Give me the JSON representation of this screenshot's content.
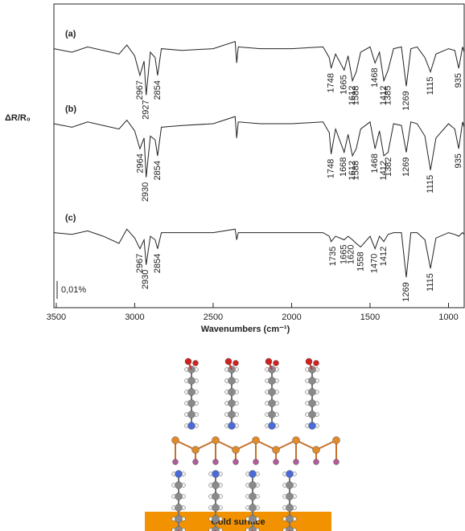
{
  "chart_data": {
    "type": "line",
    "y_label": "ΔR/R₀",
    "x_label": "Wavenumbers (cm⁻¹)",
    "xlim": [
      3515,
      900
    ],
    "xticks": [
      3500,
      3000,
      2500,
      2000,
      1500,
      1000
    ],
    "ylim": [
      0,
      0.17
    ],
    "x": [
      3515,
      3400,
      3300,
      3200,
      3100,
      3050,
      3000,
      2967,
      2940,
      2927,
      2900,
      2870,
      2854,
      2830,
      2700,
      2500,
      2360,
      2350,
      2340,
      2200,
      2000,
      1800,
      1760,
      1748,
      1720,
      1665,
      1640,
      1612,
      1588,
      1560,
      1500,
      1468,
      1440,
      1412,
      1385,
      1350,
      1300,
      1269,
      1240,
      1200,
      1150,
      1115,
      1080,
      1000,
      960,
      935,
      910,
      900
    ],
    "series": [
      {
        "name": "(a)",
        "color": "#222222",
        "values": [
          0.145,
          0.143,
          0.146,
          0.144,
          0.142,
          0.147,
          0.141,
          0.13,
          0.138,
          0.119,
          0.143,
          0.14,
          0.13,
          0.145,
          0.144,
          0.145,
          0.149,
          0.137,
          0.146,
          0.145,
          0.145,
          0.146,
          0.14,
          0.134,
          0.142,
          0.133,
          0.141,
          0.127,
          0.132,
          0.143,
          0.146,
          0.137,
          0.143,
          0.127,
          0.133,
          0.145,
          0.146,
          0.124,
          0.145,
          0.146,
          0.14,
          0.132,
          0.142,
          0.145,
          0.144,
          0.134,
          0.146,
          0.143
        ],
        "peaks": [
          2967,
          2927,
          2854,
          1748,
          1665,
          1612,
          1588,
          1468,
          1412,
          1385,
          1269,
          1115,
          935
        ]
      },
      {
        "name": "(b)",
        "color": "#222222",
        "values": [
          0.103,
          0.101,
          0.104,
          0.102,
          0.1,
          0.105,
          0.099,
          0.089,
          0.095,
          0.073,
          0.096,
          0.094,
          0.085,
          0.101,
          0.102,
          0.103,
          0.107,
          0.095,
          0.104,
          0.103,
          0.103,
          0.104,
          0.098,
          0.086,
          0.1,
          0.087,
          0.097,
          0.085,
          0.089,
          0.1,
          0.104,
          0.089,
          0.099,
          0.085,
          0.087,
          0.103,
          0.102,
          0.087,
          0.104,
          0.103,
          0.096,
          0.077,
          0.095,
          0.103,
          0.1,
          0.089,
          0.104,
          0.101
        ],
        "peaks": [
          2964,
          2930,
          2854,
          1748,
          1668,
          1612,
          1588,
          1468,
          1412,
          1382,
          1269,
          1115,
          935
        ]
      },
      {
        "name": "(c)",
        "color": "#222222",
        "values": [
          0.042,
          0.041,
          0.043,
          0.04,
          0.036,
          0.044,
          0.039,
          0.033,
          0.038,
          0.024,
          0.04,
          0.038,
          0.033,
          0.042,
          0.042,
          0.042,
          0.044,
          0.038,
          0.042,
          0.042,
          0.042,
          0.042,
          0.04,
          0.037,
          0.04,
          0.038,
          0.04,
          0.038,
          0.036,
          0.034,
          0.04,
          0.033,
          0.04,
          0.037,
          0.041,
          0.042,
          0.042,
          0.017,
          0.042,
          0.042,
          0.038,
          0.022,
          0.039,
          0.042,
          0.041,
          0.04,
          0.042,
          0.041
        ],
        "peaks": [
          2967,
          2930,
          2854,
          1735,
          1665,
          1620,
          1558,
          1470,
          1412,
          1269,
          1115
        ]
      }
    ],
    "scale_bar": {
      "value": 0.01,
      "label": "0,01%"
    }
  },
  "diagram": {
    "surface_label": "Gold surface"
  }
}
